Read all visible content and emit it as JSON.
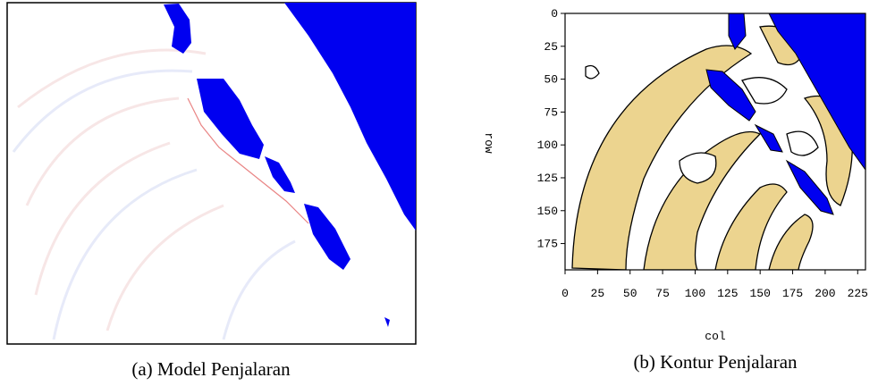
{
  "figures": [
    {
      "caption": "(a) Model Penjalaran"
    },
    {
      "caption": "(b) Kontur Penjalaran",
      "xlabel": "col",
      "ylabel": "row",
      "xlim": [
        0,
        231
      ],
      "ylim": [
        0,
        195
      ],
      "xticks": [
        0,
        25,
        50,
        75,
        100,
        125,
        150,
        175,
        200,
        225
      ],
      "yticks": [
        0,
        25,
        50,
        75,
        100,
        125,
        150,
        175
      ]
    }
  ]
}
